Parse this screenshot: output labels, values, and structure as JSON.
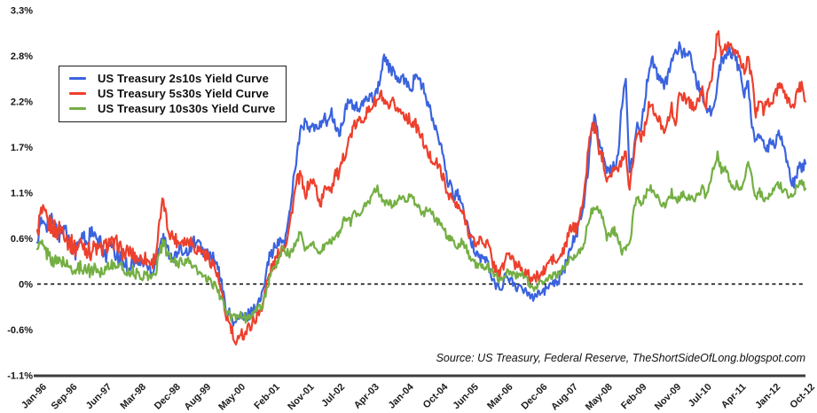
{
  "source": {
    "text": "Source: US Treasury, Federal Reserve, TheShortSideOfLong.blogspot.com"
  },
  "chart_data": {
    "type": "line",
    "title": "",
    "x_unit": "month",
    "x_start": "Jan-96",
    "x_end": "Oct-12",
    "y_domain": [
      -1.1,
      3.3
    ],
    "grid": "off",
    "zero_line_dashed": true,
    "legend_position": "top-left",
    "y_ticks": [
      {
        "label": "3.3%",
        "v": 3.3
      },
      {
        "label": "2.8%",
        "v": 2.75
      },
      {
        "label": "2.2%",
        "v": 2.2
      },
      {
        "label": "1.7%",
        "v": 1.65
      },
      {
        "label": "1.1%",
        "v": 1.1
      },
      {
        "label": "0.6%",
        "v": 0.55
      },
      {
        "label": "0%",
        "v": 0
      },
      {
        "label": "-0.6%",
        "v": -0.55
      },
      {
        "label": "-1.1%",
        "v": -1.1
      }
    ],
    "x_ticks": [
      {
        "label": "Jan-96",
        "m": 0
      },
      {
        "label": "Sep-96",
        "m": 8
      },
      {
        "label": "Jun-97",
        "m": 17
      },
      {
        "label": "Mar-98",
        "m": 26
      },
      {
        "label": "Dec-98",
        "m": 35
      },
      {
        "label": "Aug-99",
        "m": 43
      },
      {
        "label": "May-00",
        "m": 52
      },
      {
        "label": "Feb-01",
        "m": 61
      },
      {
        "label": "Nov-01",
        "m": 70
      },
      {
        "label": "Jul-02",
        "m": 78
      },
      {
        "label": "Apr-03",
        "m": 87
      },
      {
        "label": "Jan-04",
        "m": 96
      },
      {
        "label": "Oct-04",
        "m": 105
      },
      {
        "label": "Jun-05",
        "m": 113
      },
      {
        "label": "Mar-06",
        "m": 122
      },
      {
        "label": "Dec-06",
        "m": 131
      },
      {
        "label": "Aug-07",
        "m": 139
      },
      {
        "label": "May-08",
        "m": 148
      },
      {
        "label": "Feb-09",
        "m": 157
      },
      {
        "label": "Nov-09",
        "m": 166
      },
      {
        "label": "Jul-10",
        "m": 174
      },
      {
        "label": "Apr-11",
        "m": 183
      },
      {
        "label": "Jan-12",
        "m": 192
      },
      {
        "label": "Oct-12",
        "m": 201
      }
    ],
    "series": [
      {
        "name": "US Treasury 2s10s Yield Curve",
        "color": "#3B63DE",
        "render_jitter": 0.07,
        "values": [
          0.5,
          0.7,
          0.8,
          0.7,
          0.75,
          0.65,
          0.6,
          0.72,
          0.55,
          0.48,
          0.4,
          0.48,
          0.58,
          0.5,
          0.62,
          0.55,
          0.5,
          0.45,
          0.35,
          0.48,
          0.38,
          0.32,
          0.28,
          0.25,
          0.22,
          0.28,
          0.26,
          0.25,
          0.27,
          0.2,
          0.15,
          0.28,
          0.48,
          0.55,
          0.42,
          0.36,
          0.32,
          0.38,
          0.42,
          0.4,
          0.46,
          0.52,
          0.48,
          0.42,
          0.38,
          0.36,
          0.3,
          0.22,
          0.05,
          -0.22,
          -0.35,
          -0.42,
          -0.48,
          -0.38,
          -0.42,
          -0.38,
          -0.32,
          -0.28,
          -0.22,
          -0.12,
          0.25,
          0.35,
          0.42,
          0.48,
          0.52,
          0.55,
          0.85,
          1.25,
          1.6,
          1.85,
          1.95,
          1.85,
          1.9,
          1.85,
          1.95,
          2.0,
          1.95,
          2.05,
          1.9,
          1.8,
          1.95,
          2.15,
          2.2,
          2.15,
          2.1,
          2.15,
          2.2,
          2.3,
          2.25,
          2.35,
          2.55,
          2.75,
          2.62,
          2.55,
          2.5,
          2.42,
          2.48,
          2.42,
          2.35,
          2.55,
          2.45,
          2.35,
          2.2,
          2.05,
          1.9,
          1.75,
          1.58,
          1.3,
          1.18,
          1.05,
          1.12,
          0.95,
          0.8,
          0.58,
          0.45,
          0.38,
          0.32,
          0.3,
          0.25,
          0.05,
          -0.02,
          -0.06,
          0.05,
          0.1,
          0.04,
          0.0,
          -0.05,
          -0.1,
          -0.08,
          -0.12,
          -0.14,
          -0.08,
          -0.1,
          -0.08,
          -0.02,
          0.05,
          0.02,
          0.12,
          0.18,
          0.38,
          0.52,
          0.58,
          0.78,
          0.97,
          1.35,
          1.85,
          2.05,
          1.7,
          1.55,
          1.35,
          1.42,
          1.4,
          1.55,
          2.2,
          2.5,
          1.35,
          1.55,
          1.95,
          1.9,
          2.2,
          2.6,
          2.7,
          2.55,
          2.45,
          2.38,
          2.5,
          2.68,
          2.82,
          2.85,
          2.78,
          2.8,
          2.72,
          2.52,
          2.38,
          2.32,
          2.12,
          2.08,
          2.15,
          2.45,
          2.7,
          2.72,
          2.85,
          2.75,
          2.68,
          2.52,
          2.3,
          2.42,
          1.95,
          1.68,
          1.82,
          1.7,
          1.62,
          1.72,
          1.68,
          1.85,
          1.72,
          1.52,
          1.28,
          1.22,
          1.38,
          1.42,
          1.45
        ]
      },
      {
        "name": "US Treasury 5s30s Yield Curve",
        "color": "#ED402D",
        "render_jitter": 0.07,
        "values": [
          0.65,
          0.85,
          0.8,
          0.72,
          0.7,
          0.62,
          0.68,
          0.65,
          0.52,
          0.48,
          0.42,
          0.5,
          0.48,
          0.42,
          0.38,
          0.45,
          0.4,
          0.42,
          0.46,
          0.52,
          0.45,
          0.5,
          0.4,
          0.35,
          0.4,
          0.35,
          0.32,
          0.3,
          0.32,
          0.28,
          0.25,
          0.35,
          0.72,
          1.02,
          0.7,
          0.6,
          0.55,
          0.5,
          0.55,
          0.5,
          0.55,
          0.45,
          0.42,
          0.4,
          0.35,
          0.3,
          0.25,
          0.12,
          -0.08,
          -0.32,
          -0.45,
          -0.58,
          -0.8,
          -0.55,
          -0.62,
          -0.55,
          -0.48,
          -0.42,
          -0.35,
          -0.22,
          0.0,
          0.15,
          0.25,
          0.35,
          0.45,
          0.5,
          0.7,
          1.0,
          1.25,
          1.3,
          1.05,
          1.2,
          1.25,
          1.15,
          0.95,
          1.1,
          1.2,
          1.15,
          1.35,
          1.3,
          1.5,
          1.65,
          1.8,
          1.9,
          1.95,
          2.0,
          2.05,
          2.1,
          2.18,
          2.2,
          2.28,
          2.15,
          2.1,
          2.18,
          2.12,
          2.08,
          2.05,
          2.0,
          1.95,
          1.92,
          1.82,
          1.72,
          1.58,
          1.52,
          1.48,
          1.42,
          1.32,
          1.12,
          1.08,
          0.98,
          0.92,
          0.88,
          0.78,
          0.62,
          0.52,
          0.48,
          0.55,
          0.5,
          0.48,
          0.28,
          0.18,
          0.12,
          0.22,
          0.38,
          0.32,
          0.22,
          0.25,
          0.18,
          0.12,
          0.08,
          0.05,
          0.1,
          0.12,
          0.18,
          0.28,
          0.3,
          0.25,
          0.35,
          0.42,
          0.6,
          0.7,
          0.65,
          0.88,
          1.0,
          1.55,
          1.9,
          1.88,
          1.62,
          1.52,
          1.28,
          1.35,
          1.4,
          1.35,
          1.52,
          1.58,
          1.15,
          1.55,
          1.85,
          1.78,
          1.88,
          2.18,
          2.1,
          2.0,
          1.95,
          1.88,
          1.95,
          2.12,
          1.95,
          2.25,
          2.28,
          2.22,
          2.18,
          2.12,
          2.22,
          2.32,
          2.18,
          2.38,
          2.65,
          3.05,
          2.82,
          2.85,
          2.88,
          2.78,
          2.82,
          2.68,
          2.58,
          2.72,
          2.45,
          2.02,
          2.25,
          2.08,
          2.18,
          2.2,
          2.25,
          2.4,
          2.32,
          2.25,
          2.18,
          2.15,
          2.35,
          2.38,
          2.2
        ]
      },
      {
        "name": "US Treasury 10s30s Yield Curve",
        "color": "#74AF43",
        "render_jitter": 0.05,
        "values": [
          0.42,
          0.48,
          0.4,
          0.35,
          0.3,
          0.25,
          0.3,
          0.26,
          0.2,
          0.2,
          0.15,
          0.2,
          0.2,
          0.18,
          0.15,
          0.2,
          0.16,
          0.15,
          0.2,
          0.25,
          0.2,
          0.25,
          0.2,
          0.15,
          0.16,
          0.15,
          0.12,
          0.1,
          0.12,
          0.1,
          0.08,
          0.15,
          0.38,
          0.5,
          0.36,
          0.3,
          0.26,
          0.25,
          0.3,
          0.25,
          0.28,
          0.2,
          0.15,
          0.1,
          0.05,
          0.04,
          0.0,
          -0.06,
          -0.15,
          -0.3,
          -0.36,
          -0.42,
          -0.4,
          -0.35,
          -0.4,
          -0.42,
          -0.36,
          -0.32,
          -0.3,
          -0.25,
          -0.05,
          0.08,
          0.18,
          0.28,
          0.42,
          0.4,
          0.35,
          0.42,
          0.55,
          0.6,
          0.4,
          0.48,
          0.48,
          0.45,
          0.35,
          0.45,
          0.48,
          0.52,
          0.58,
          0.62,
          0.75,
          0.8,
          0.75,
          0.85,
          0.85,
          0.9,
          0.95,
          1.0,
          1.1,
          1.15,
          1.05,
          0.95,
          1.0,
          0.95,
          1.0,
          1.05,
          1.0,
          1.05,
          1.1,
          0.95,
          0.9,
          0.85,
          0.9,
          0.85,
          0.8,
          0.75,
          0.7,
          0.6,
          0.55,
          0.5,
          0.45,
          0.5,
          0.45,
          0.35,
          0.28,
          0.22,
          0.25,
          0.2,
          0.22,
          0.15,
          0.1,
          0.05,
          0.1,
          0.15,
          0.15,
          0.1,
          0.12,
          0.1,
          0.05,
          0.0,
          -0.04,
          0.0,
          0.0,
          0.05,
          0.1,
          0.1,
          0.12,
          0.15,
          0.2,
          0.28,
          0.32,
          0.3,
          0.42,
          0.48,
          0.7,
          0.88,
          0.95,
          0.88,
          0.78,
          0.55,
          0.6,
          0.65,
          0.55,
          0.38,
          0.42,
          0.48,
          0.85,
          1.05,
          0.92,
          1.05,
          1.18,
          1.12,
          1.05,
          1.0,
          0.95,
          1.02,
          1.1,
          1.0,
          1.05,
          1.1,
          1.02,
          1.05,
          1.0,
          1.1,
          1.15,
          1.05,
          1.2,
          1.42,
          1.55,
          1.38,
          1.4,
          1.28,
          1.15,
          1.2,
          1.15,
          1.3,
          1.45,
          1.28,
          1.02,
          1.12,
          1.02,
          1.05,
          1.1,
          1.15,
          1.2,
          1.15,
          1.1,
          1.05,
          1.1,
          1.2,
          1.25,
          1.15
        ]
      }
    ]
  }
}
